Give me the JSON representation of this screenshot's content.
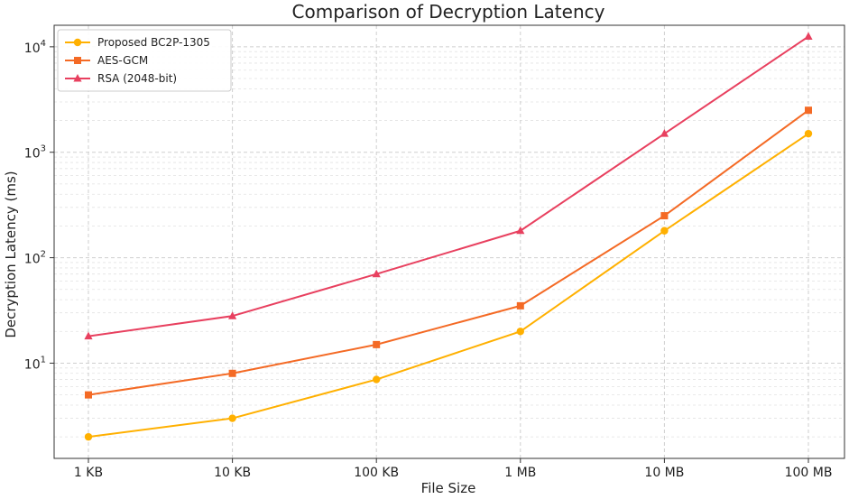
{
  "chart_data": {
    "type": "line",
    "title": "Comparison of Decryption Latency",
    "xlabel": "File Size",
    "ylabel": "Decryption Latency (ms)",
    "yscale": "log",
    "ylim": [
      1.25,
      16000
    ],
    "grid": true,
    "legend_position": "top-left",
    "categories": [
      "1 KB",
      "10 KB",
      "100 KB",
      "1 MB",
      "10 MB",
      "100 MB"
    ],
    "y_ticks": [
      {
        "base": "10",
        "exp": "1",
        "value": 10
      },
      {
        "base": "10",
        "exp": "2",
        "value": 100
      },
      {
        "base": "10",
        "exp": "3",
        "value": 1000
      },
      {
        "base": "10",
        "exp": "4",
        "value": 10000
      }
    ],
    "series": [
      {
        "name": "Proposed BC2P-1305",
        "color": "#ffb000",
        "marker": "circle",
        "values": [
          2,
          3,
          7,
          20,
          180,
          1500
        ]
      },
      {
        "name": "AES-GCM",
        "color": "#f46a25",
        "marker": "square",
        "values": [
          5,
          8,
          15,
          35,
          250,
          2500
        ]
      },
      {
        "name": "RSA (2048-bit)",
        "color": "#e8405f",
        "marker": "triangle",
        "values": [
          18,
          28,
          70,
          180,
          1500,
          12500
        ]
      }
    ]
  }
}
